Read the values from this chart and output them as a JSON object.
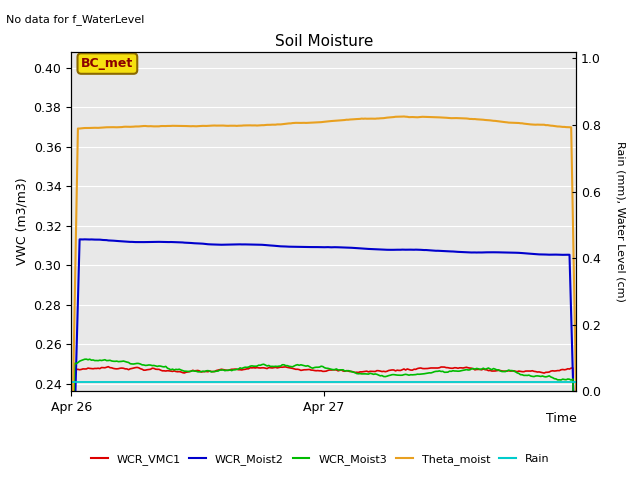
{
  "title": "Soil Moisture",
  "top_left_text": "No data for f_WaterLevel",
  "ylabel_left": "VWC (m3/m3)",
  "ylabel_right": "Rain (mm), Water Level (cm)",
  "xlabel": "Time",
  "x_tick_labels": [
    "Apr 26",
    "Apr 27"
  ],
  "ylim_left": [
    0.236,
    0.408
  ],
  "ylim_right": [
    0.0,
    1.02
  ],
  "yticks_left": [
    0.24,
    0.26,
    0.28,
    0.3,
    0.32,
    0.34,
    0.36,
    0.38,
    0.4
  ],
  "yticks_right": [
    0.0,
    0.2,
    0.4,
    0.6,
    0.8,
    1.0
  ],
  "bg_color": "#e8e8e8",
  "legend_entries": [
    "WCR_VMC1",
    "WCR_Moist2",
    "WCR_Moist3",
    "Theta_moist",
    "Rain"
  ],
  "line_colors": [
    "#dd0000",
    "#0000cc",
    "#00bb00",
    "#e8a020",
    "#00cccc"
  ],
  "annotation_text": "BC_met",
  "title_fontsize": 11,
  "label_fontsize": 9,
  "tick_fontsize": 9
}
